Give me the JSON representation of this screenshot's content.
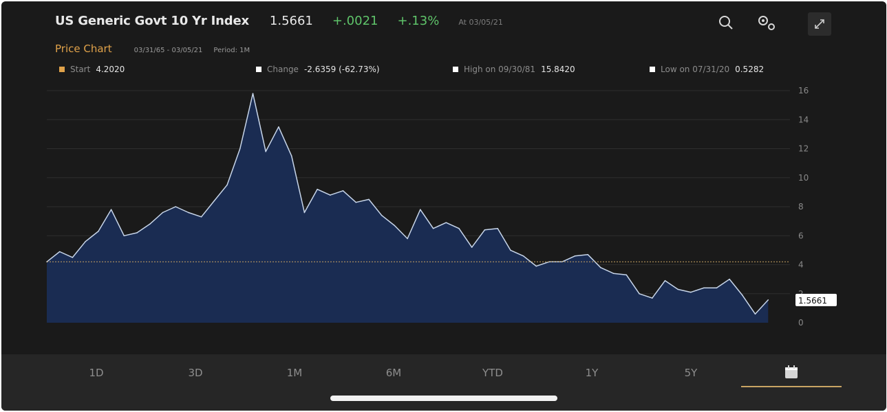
{
  "header": {
    "title": "US Generic Govt 10 Yr Index",
    "price": "1.5661",
    "change": "+.0021",
    "change_pct": "+.13%",
    "as_of": "At 03/05/21",
    "icons": [
      "search-icon",
      "settings-icon",
      "collapse-icon"
    ]
  },
  "subheader": {
    "label": "Price Chart",
    "date_range": "03/31/65 - 03/05/21",
    "period": "Period: 1M"
  },
  "stats": {
    "start_label": "Start",
    "start_value": "4.2020",
    "change_label": "Change",
    "change_value": "-2.6359 (-62.73%)",
    "high_label": "High on 09/30/81",
    "high_value": "15.8420",
    "low_label": "Low on 07/31/20",
    "low_value": "0.5282"
  },
  "colors": {
    "accent": "#e0a24a",
    "positive": "#5fc46a",
    "area_fill": "#1a2c52",
    "line": "#c8d6ea"
  },
  "chart_data": {
    "type": "area",
    "title": "",
    "xlabel": "",
    "ylabel": "",
    "ylim": [
      0,
      16
    ],
    "yticks": [
      0,
      2,
      4,
      6,
      8,
      10,
      12,
      14,
      16
    ],
    "reference_line": 4.202,
    "last_value_label": "1.5661",
    "grid": true,
    "x": [
      1965,
      1966,
      1967,
      1968,
      1969,
      1970,
      1971,
      1972,
      1973,
      1974,
      1975,
      1976,
      1977,
      1978,
      1979,
      1980,
      1981,
      1982,
      1983,
      1984,
      1985,
      1986,
      1987,
      1988,
      1989,
      1990,
      1991,
      1992,
      1993,
      1994,
      1995,
      1996,
      1997,
      1998,
      1999,
      2000,
      2001,
      2002,
      2003,
      2004,
      2005,
      2006,
      2007,
      2008,
      2009,
      2010,
      2011,
      2012,
      2013,
      2014,
      2015,
      2016,
      2017,
      2018,
      2019,
      2020,
      2021
    ],
    "series": [
      {
        "values": [
          4.2,
          4.9,
          4.5,
          5.6,
          6.3,
          7.8,
          6.0,
          6.2,
          6.8,
          7.6,
          8.0,
          7.6,
          7.3,
          8.4,
          9.5,
          12.0,
          15.8,
          11.8,
          13.5,
          11.5,
          7.6,
          9.2,
          8.8,
          9.1,
          8.3,
          8.5,
          7.4,
          6.7,
          5.8,
          7.8,
          6.5,
          6.9,
          6.5,
          5.2,
          6.4,
          6.5,
          5.0,
          4.6,
          3.9,
          4.2,
          4.2,
          4.6,
          4.7,
          3.8,
          3.4,
          3.3,
          2.0,
          1.7,
          2.9,
          2.3,
          2.1,
          2.4,
          2.4,
          3.0,
          1.9,
          0.6,
          1.57
        ]
      }
    ]
  },
  "tabs": [
    "1D",
    "3D",
    "1M",
    "6M",
    "YTD",
    "1Y",
    "5Y"
  ],
  "active_tab": "calendar-icon"
}
